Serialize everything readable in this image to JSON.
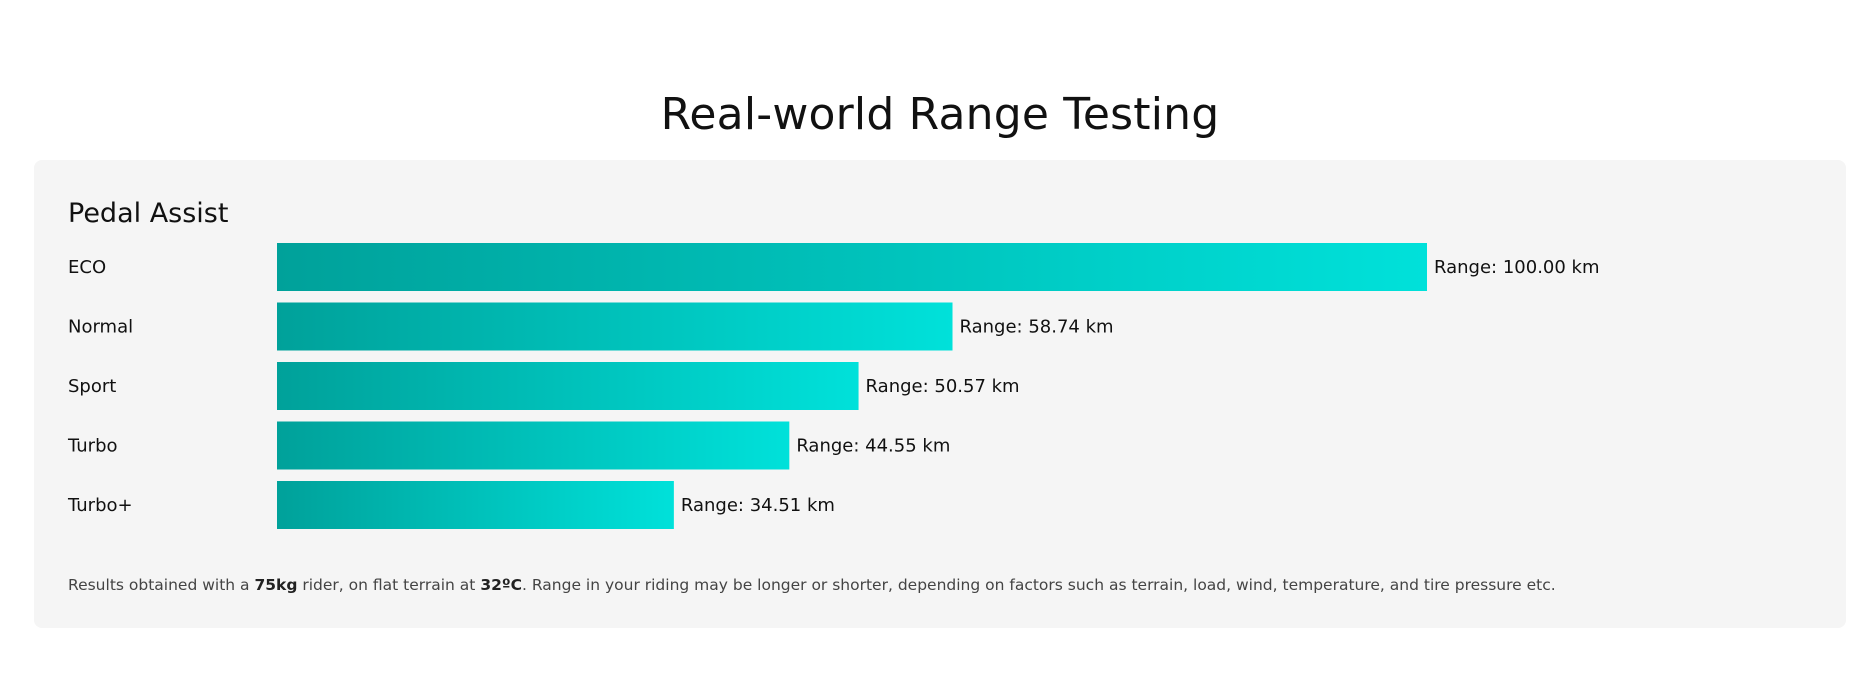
{
  "page": {
    "title": "Real-world Range Testing"
  },
  "colors": {
    "bar_start": "#00a19a",
    "bar_end": "#00e1da",
    "panel_bg": "#f5f5f5"
  },
  "chart_data": {
    "type": "bar",
    "orientation": "horizontal",
    "title": "Pedal Assist",
    "xlabel": "",
    "ylabel": "",
    "categories": [
      "ECO",
      "Normal",
      "Sport",
      "Turbo",
      "Turbo+"
    ],
    "values": [
      100.0,
      58.74,
      50.57,
      44.55,
      34.51
    ],
    "data_labels": [
      "Range: 100.00 km",
      "Range: 58.74 km",
      "Range: 50.57 km",
      "Range: 44.55 km",
      "Range: 34.51 km"
    ],
    "unit": "km",
    "grid": false,
    "legend": "none"
  },
  "footnote": {
    "prefix": "Results obtained with a ",
    "weight": "75kg",
    "middle": " rider, on flat terrain at ",
    "temperature": "32ºC",
    "suffix": ". Range in your riding may be longer or shorter, depending on factors such as terrain, load, wind, temperature, and tire pressure etc."
  }
}
